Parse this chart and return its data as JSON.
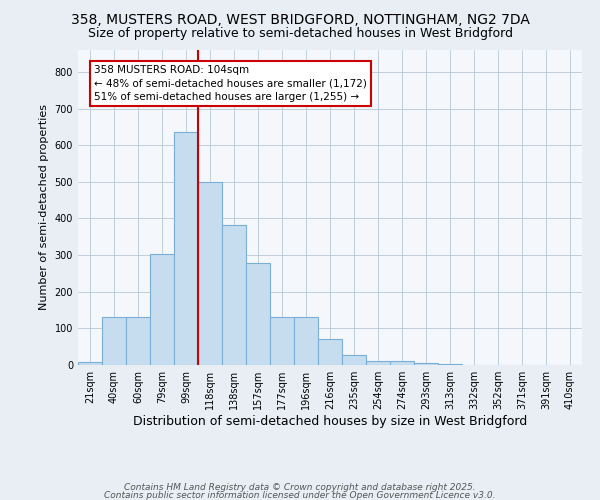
{
  "title1": "358, MUSTERS ROAD, WEST BRIDGFORD, NOTTINGHAM, NG2 7DA",
  "title2": "Size of property relative to semi-detached houses in West Bridgford",
  "xlabel": "Distribution of semi-detached houses by size in West Bridgford",
  "ylabel": "Number of semi-detached properties",
  "bar_labels": [
    "21sqm",
    "40sqm",
    "60sqm",
    "79sqm",
    "99sqm",
    "118sqm",
    "138sqm",
    "157sqm",
    "177sqm",
    "196sqm",
    "216sqm",
    "235sqm",
    "254sqm",
    "274sqm",
    "293sqm",
    "313sqm",
    "332sqm",
    "352sqm",
    "371sqm",
    "391sqm",
    "410sqm"
  ],
  "bar_values": [
    8,
    130,
    130,
    302,
    635,
    500,
    383,
    278,
    132,
    132,
    72,
    27,
    12,
    10,
    5,
    2,
    0,
    0,
    0,
    0,
    0
  ],
  "bar_color": "#c6ddef",
  "bar_edge_color": "#7aaed6",
  "vline_color": "#cc0000",
  "annotation_title": "358 MUSTERS ROAD: 104sqm",
  "annotation_line1": "← 48% of semi-detached houses are smaller (1,172)",
  "annotation_line2": "51% of semi-detached houses are larger (1,255) →",
  "footer1": "Contains HM Land Registry data © Crown copyright and database right 2025.",
  "footer2": "Contains public sector information licensed under the Open Government Licence v3.0.",
  "ylim": [
    0,
    860
  ],
  "bg_color": "#e8eef4",
  "plot_bg_color": "#f4f8fc",
  "title1_fontsize": 10,
  "title2_fontsize": 9,
  "xlabel_fontsize": 9,
  "ylabel_fontsize": 8,
  "tick_fontsize": 7,
  "footer_fontsize": 6.5,
  "annot_fontsize": 7.5
}
